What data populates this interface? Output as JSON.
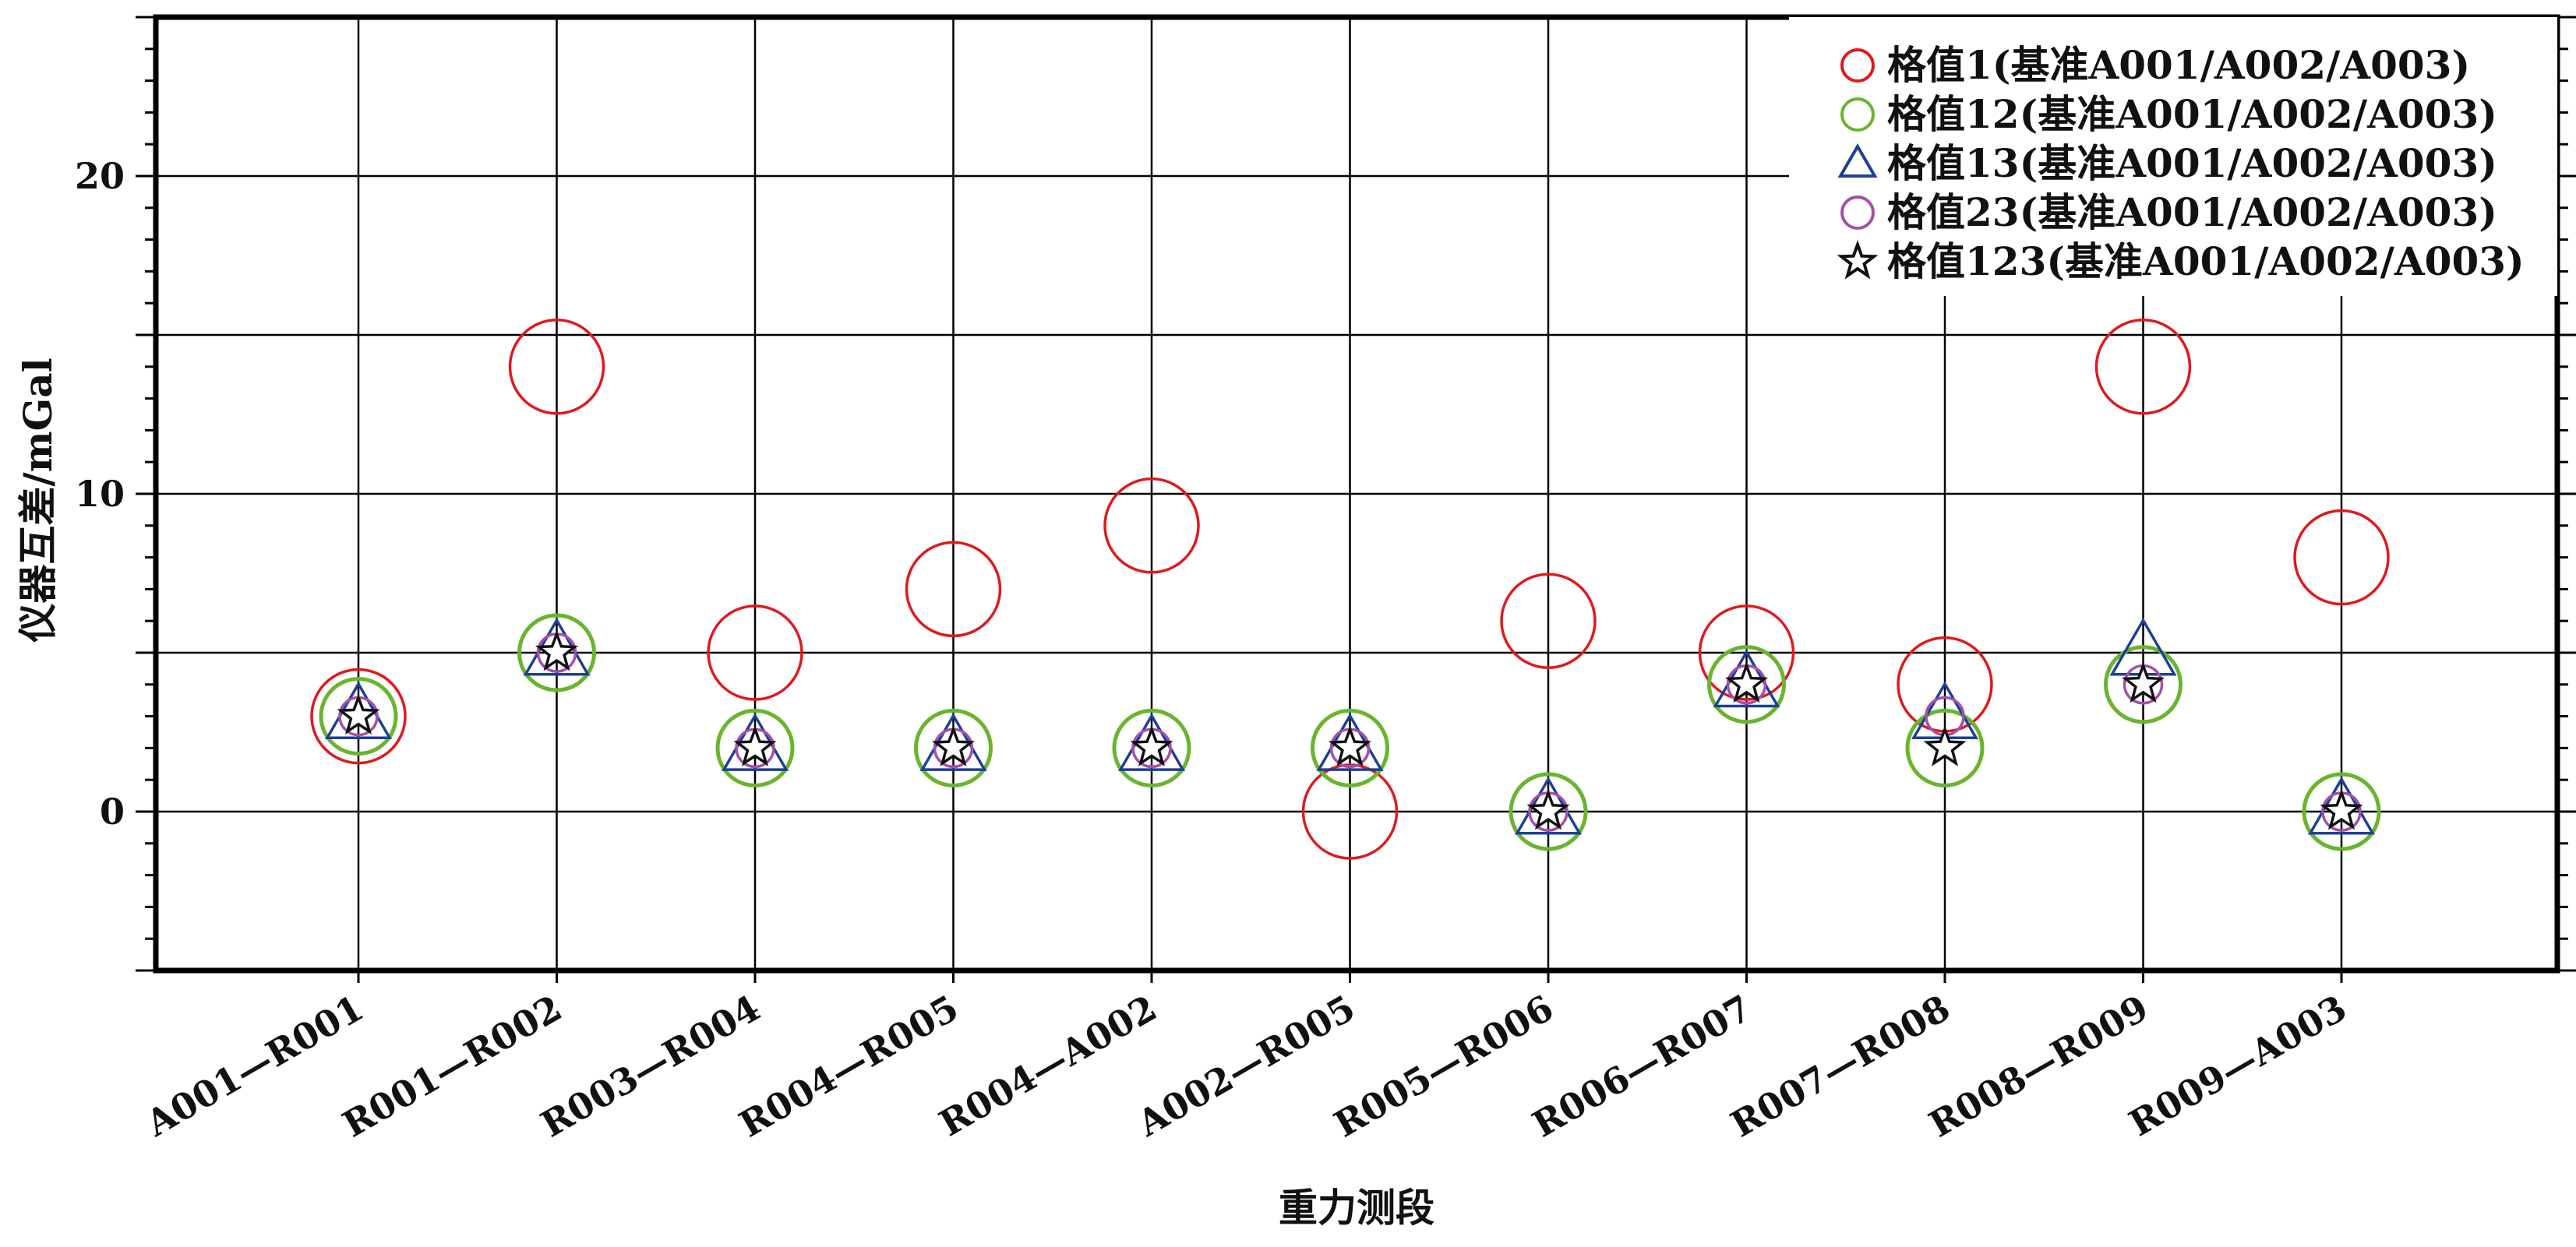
{
  "chart_data": {
    "type": "scatter",
    "xlabel": "重力测段",
    "ylabel": "仪器互差/mGal",
    "ylim": [
      -5,
      25
    ],
    "yticks": [
      0,
      10,
      20
    ],
    "grid": "on",
    "legend_position": "top-right",
    "categories": [
      "A001—R001",
      "R001—R002",
      "R003—R004",
      "R004—R005",
      "R004—A002",
      "A002—R005",
      "R005—R006",
      "R006—R007",
      "R007—R008",
      "R008—R009",
      "R009—A003"
    ],
    "series": [
      {
        "name": "格值1(基准A001/A002/A003)",
        "marker": "circle-large",
        "color": "#e0191c",
        "values": [
          3,
          14,
          5,
          7,
          9,
          0,
          6,
          5,
          4,
          14,
          8
        ]
      },
      {
        "name": "格值12(基准A001/A002/A003)",
        "marker": "circle",
        "color": "#6ab42e",
        "values": [
          3,
          5,
          2,
          2,
          2,
          2,
          0,
          4,
          2,
          4,
          0
        ]
      },
      {
        "name": "格值13(基准A001/A002/A003)",
        "marker": "triangle",
        "color": "#1c3f99",
        "values": [
          3,
          5,
          2,
          2,
          2,
          2,
          0,
          4,
          3,
          5,
          0
        ]
      },
      {
        "name": "格值23(基准A001/A002/A003)",
        "marker": "circle-small",
        "color": "#a550a8",
        "values": [
          3,
          5,
          2,
          2,
          2,
          2,
          0,
          4,
          3,
          4,
          0
        ]
      },
      {
        "name": "格值123(基准A001/A002/A003)",
        "marker": "star",
        "color": "#111111",
        "values": [
          3,
          5,
          2,
          2,
          2,
          2,
          0,
          4,
          2,
          4,
          0
        ]
      }
    ]
  }
}
